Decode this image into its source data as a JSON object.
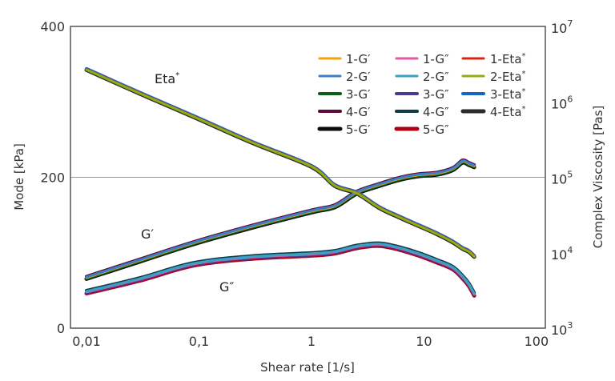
{
  "chart_data": {
    "type": "line",
    "title": "",
    "xlabel": "Shear rate [1/s]",
    "ylabel": "Mode [kPa]",
    "y2label": "Complex Viscosity [Pas]",
    "xscale": "log",
    "xlim": [
      0.0072,
      120
    ],
    "xticks": [
      0.01,
      0.1,
      1,
      10,
      100
    ],
    "xtick_labels": [
      "0,01",
      "0,1",
      "1",
      "10",
      "100"
    ],
    "ylim": [
      0,
      400
    ],
    "yticks": [
      0,
      200,
      400
    ],
    "ytick_labels": [
      "0",
      "200",
      "400"
    ],
    "y2scale": "log",
    "y2lim": [
      1000,
      10000000
    ],
    "y2ticks": [
      1000,
      10000,
      100000,
      1000000,
      10000000
    ],
    "y2tick_labels": [
      {
        "base": "10",
        "exp": "3"
      },
      {
        "base": "10",
        "exp": "4"
      },
      {
        "base": "10",
        "exp": "5"
      },
      {
        "base": "10",
        "exp": "6"
      },
      {
        "base": "10",
        "exp": "7"
      }
    ],
    "grid": "horizontal at 200",
    "legend_position": "top-right",
    "annotations": [
      {
        "text": "Eta",
        "sup": "*",
        "series": "Eta*"
      },
      {
        "text": "G′",
        "series": "G′"
      },
      {
        "text": "G″",
        "series": "G″"
      }
    ],
    "x": [
      0.01,
      0.03,
      0.09,
      0.3,
      1,
      1.62,
      2.54,
      4,
      6,
      9,
      13,
      18,
      22,
      25,
      28
    ],
    "curves": {
      "G1": [
        67,
        90,
        113,
        135,
        155,
        162,
        180,
        190,
        198,
        203,
        205,
        211,
        221,
        218,
        215
      ],
      "G2": [
        48,
        65,
        85,
        94,
        98,
        101,
        108,
        111,
        106,
        98,
        89,
        80,
        68,
        58,
        45
      ],
      "Eta": [
        2700000,
        1300000,
        640000,
        290000,
        140000,
        78000,
        62000,
        40000,
        30000,
        23000,
        18000,
        14000,
        11500,
        10500,
        9000
      ]
    },
    "series": [
      {
        "name": "1-G′",
        "kind": "G1",
        "axis": "left",
        "color": "#f4a20c",
        "offset": 0,
        "width": 3
      },
      {
        "name": "2-G′",
        "kind": "G1",
        "axis": "left",
        "color": "#3d7fc4",
        "offset": -0.8,
        "width": 3
      },
      {
        "name": "3-G′",
        "kind": "G1",
        "axis": "left",
        "color": "#0e5e1a",
        "offset": 0.8,
        "width": 4
      },
      {
        "name": "4-G′",
        "kind": "G1",
        "axis": "left",
        "color": "#5c0a3c",
        "offset": -1.5,
        "width": 4
      },
      {
        "name": "5-G′",
        "kind": "G1",
        "axis": "left",
        "color": "#0d0d0d",
        "offset": 1.5,
        "width": 5
      },
      {
        "name": "1-G″",
        "kind": "G2",
        "axis": "left",
        "color": "#e05aa0",
        "offset": 0,
        "width": 3
      },
      {
        "name": "2-G″",
        "kind": "G2",
        "axis": "left",
        "color": "#3aa1c2",
        "offset": -0.8,
        "width": 3
      },
      {
        "name": "3-G″",
        "kind": "G2",
        "axis": "left",
        "color": "#4b3a8f",
        "offset": 0.8,
        "width": 4
      },
      {
        "name": "4-G″",
        "kind": "G2",
        "axis": "left",
        "color": "#0f3a46",
        "offset": -1.8,
        "width": 4
      },
      {
        "name": "5-G″",
        "kind": "G2",
        "axis": "left",
        "color": "#b00018",
        "offset": 1.8,
        "width": 5
      },
      {
        "name": "1-Eta*",
        "kind": "Eta",
        "axis": "right",
        "color": "#d62612",
        "offset": 0,
        "width": 3
      },
      {
        "name": "2-Eta*",
        "kind": "Eta",
        "axis": "right",
        "color": "#8fae12",
        "offset": 0.5,
        "width": 3
      },
      {
        "name": "3-Eta*",
        "kind": "Eta",
        "axis": "right",
        "color": "#1565c6",
        "offset": -0.8,
        "width": 4
      },
      {
        "name": "4-Eta*",
        "kind": "Eta",
        "axis": "right",
        "color": "#2b2b2b",
        "offset": 0.8,
        "width": 5
      }
    ],
    "legend": [
      [
        "1-G′",
        "1-G″",
        "1-Eta*"
      ],
      [
        "2-G′",
        "2-G″",
        "2-Eta*"
      ],
      [
        "3-G′",
        "3-G″",
        "3-Eta*"
      ],
      [
        "4-G′",
        "4-G″",
        "4-Eta*"
      ],
      [
        "5-G′",
        "5-G″",
        ""
      ]
    ]
  }
}
